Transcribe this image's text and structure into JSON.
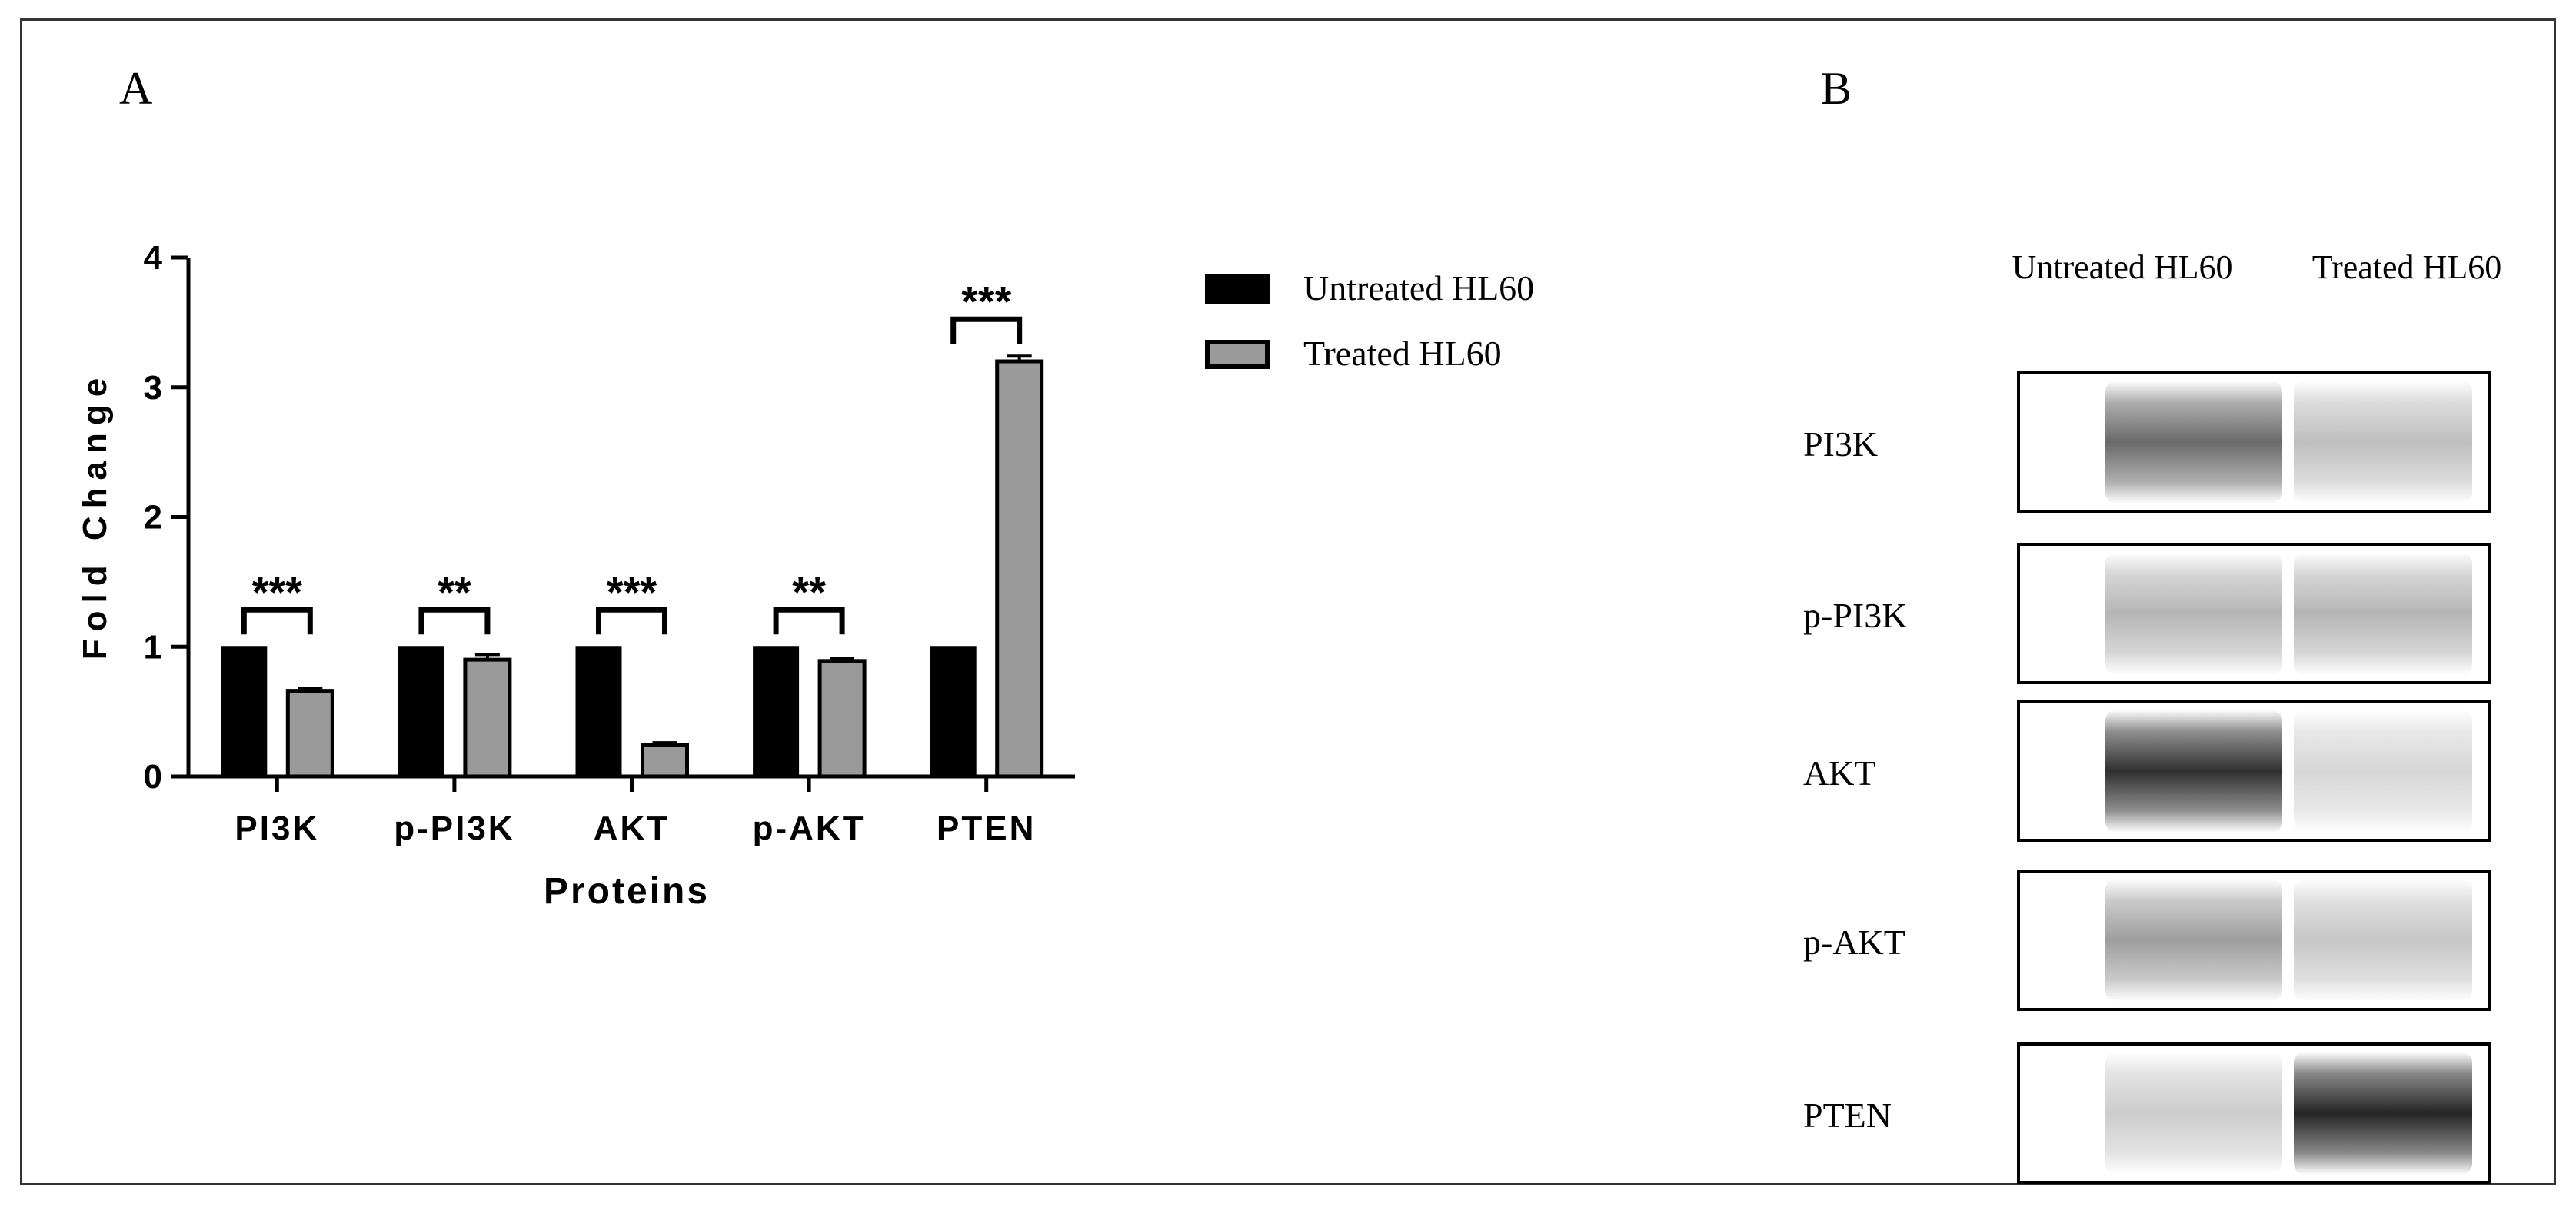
{
  "panel_a_label": "A",
  "panel_b_label": "B",
  "chart_data": {
    "type": "bar",
    "categories": [
      "PI3K",
      "p-PI3K",
      "AKT",
      "p-AKT",
      "PTEN"
    ],
    "xlabel": "Proteins",
    "ylabel": "Fold Change",
    "ylim": [
      0,
      4
    ],
    "yticks": [
      0,
      1,
      2,
      3,
      4
    ],
    "series": [
      {
        "name": "Untreated HL60",
        "values": [
          1.0,
          1.0,
          1.0,
          1.0,
          1.0
        ],
        "errors": [
          0,
          0,
          0,
          0,
          0
        ],
        "color": "#000000"
      },
      {
        "name": "Treated HL60",
        "values": [
          0.66,
          0.9,
          0.24,
          0.89,
          3.2
        ],
        "errors": [
          0.02,
          0.04,
          0.02,
          0.02,
          0.04
        ],
        "color": "#9a9a9a"
      }
    ],
    "significance": [
      "***",
      "**",
      "***",
      "**",
      "***"
    ],
    "legend_position": "right"
  },
  "blot": {
    "column_labels": [
      "Untreated HL60",
      "Treated HL60"
    ],
    "rows": [
      {
        "label": "PI3K",
        "intensities": [
          0.65,
          0.28
        ]
      },
      {
        "label": "p-PI3K",
        "intensities": [
          0.32,
          0.32
        ]
      },
      {
        "label": "AKT",
        "intensities": [
          0.9,
          0.18
        ]
      },
      {
        "label": "p-AKT",
        "intensities": [
          0.42,
          0.25
        ]
      },
      {
        "label": "PTEN",
        "intensities": [
          0.22,
          0.95
        ]
      }
    ]
  }
}
